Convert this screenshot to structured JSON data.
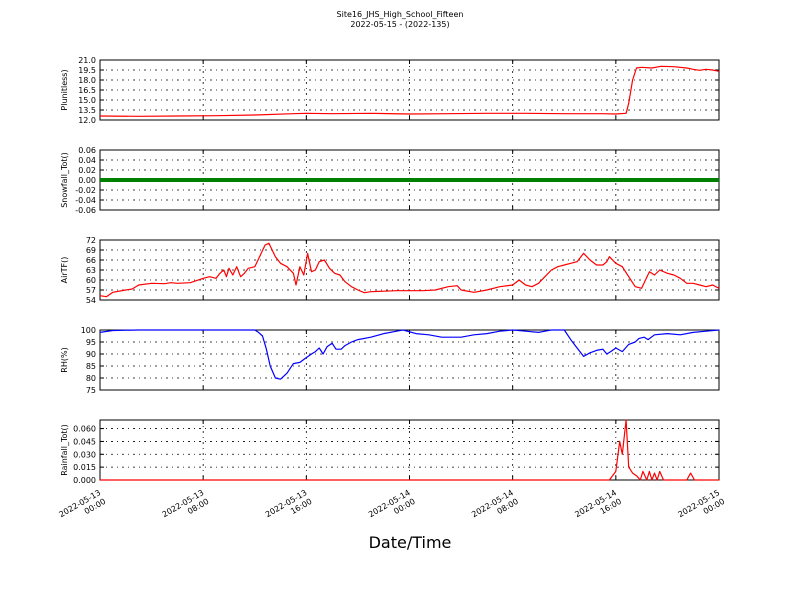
{
  "figure": {
    "title": "Site16_JHS_High_School_Fifteen",
    "subtitle": "2022-05-15 - (2022-135)",
    "xlabel": "Date/Time"
  },
  "chart_data": {
    "type": "line",
    "x_ticks": [
      {
        "hours": 0,
        "line1": "2022-05-13",
        "line2": "00:00"
      },
      {
        "hours": 8,
        "line1": "2022-05-13",
        "line2": "08:00"
      },
      {
        "hours": 16,
        "line1": "2022-05-13",
        "line2": "16:00"
      },
      {
        "hours": 24,
        "line1": "2022-05-14",
        "line2": "00:00"
      },
      {
        "hours": 32,
        "line1": "2022-05-14",
        "line2": "08:00"
      },
      {
        "hours": 40,
        "line1": "2022-05-14",
        "line2": "16:00"
      },
      {
        "hours": 48,
        "line1": "2022-05-15",
        "line2": "00:00"
      }
    ],
    "panels": [
      {
        "ylabel": "Plunitless)",
        "color": "#ff0000",
        "style": "line",
        "ylim": [
          12.0,
          21.0
        ],
        "yticks": [
          "12.0",
          "13.5",
          "15.0",
          "16.5",
          "18.0",
          "19.5",
          "21.0"
        ],
        "points": [
          [
            0,
            12.6
          ],
          [
            3,
            12.55
          ],
          [
            6,
            12.6
          ],
          [
            9,
            12.65
          ],
          [
            12,
            12.75
          ],
          [
            15,
            12.95
          ],
          [
            16,
            13.0
          ],
          [
            18,
            12.95
          ],
          [
            21,
            13.0
          ],
          [
            24,
            12.9
          ],
          [
            27,
            12.95
          ],
          [
            30,
            13.0
          ],
          [
            33,
            13.0
          ],
          [
            36,
            12.95
          ],
          [
            39,
            12.95
          ],
          [
            40,
            12.9
          ],
          [
            40.8,
            13.0
          ],
          [
            41.0,
            14.5
          ],
          [
            41.3,
            18.0
          ],
          [
            41.6,
            19.8
          ],
          [
            42,
            19.9
          ],
          [
            42.8,
            19.8
          ],
          [
            43.5,
            20.05
          ],
          [
            44.5,
            20.0
          ],
          [
            45.5,
            19.8
          ],
          [
            46,
            19.6
          ],
          [
            46.5,
            19.45
          ],
          [
            47,
            19.6
          ],
          [
            47.5,
            19.5
          ],
          [
            48,
            19.3
          ]
        ]
      },
      {
        "ylabel": "Snowfall_Tot()",
        "color": "#008000",
        "style": "dots",
        "ylim": [
          -0.06,
          0.06
        ],
        "yticks": [
          "-0.06",
          "-0.04",
          "-0.02",
          "0.00",
          "0.02",
          "0.04",
          "0.06"
        ],
        "points": [
          [
            0,
            0
          ],
          [
            48,
            0
          ]
        ]
      },
      {
        "ylabel": "AirTF()",
        "color": "#ff0000",
        "style": "line",
        "ylim": [
          54,
          72
        ],
        "yticks": [
          "54",
          "57",
          "60",
          "63",
          "66",
          "69",
          "72"
        ],
        "points": [
          [
            0,
            55.3
          ],
          [
            0.5,
            55.0
          ],
          [
            1,
            56.3
          ],
          [
            2,
            57.0
          ],
          [
            2.5,
            57.3
          ],
          [
            3,
            58.5
          ],
          [
            4,
            59.0
          ],
          [
            5,
            58.9
          ],
          [
            5.5,
            59.2
          ],
          [
            6,
            59.0
          ],
          [
            7,
            59.2
          ],
          [
            8,
            60.5
          ],
          [
            8.5,
            61.0
          ],
          [
            9,
            60.5
          ],
          [
            9.3,
            62.0
          ],
          [
            9.6,
            63.0
          ],
          [
            9.8,
            61.0
          ],
          [
            10,
            63.5
          ],
          [
            10.3,
            61.5
          ],
          [
            10.6,
            64.0
          ],
          [
            10.9,
            61.0
          ],
          [
            11.2,
            62.0
          ],
          [
            11.5,
            63.5
          ],
          [
            12,
            64.0
          ],
          [
            12.5,
            68.0
          ],
          [
            12.8,
            70.5
          ],
          [
            13.1,
            71.0
          ],
          [
            13.6,
            67.0
          ],
          [
            14,
            65.0
          ],
          [
            14.5,
            64.0
          ],
          [
            15,
            62.0
          ],
          [
            15.2,
            58.5
          ],
          [
            15.5,
            64.0
          ],
          [
            15.8,
            61.5
          ],
          [
            16.1,
            68.0
          ],
          [
            16.4,
            62.5
          ],
          [
            16.7,
            63.0
          ],
          [
            17,
            65.5
          ],
          [
            17.4,
            66.0
          ],
          [
            17.8,
            63.5
          ],
          [
            18.2,
            62.0
          ],
          [
            18.6,
            61.5
          ],
          [
            19,
            59.5
          ],
          [
            19.5,
            58.0
          ],
          [
            20,
            57.0
          ],
          [
            20.5,
            56.2
          ],
          [
            21,
            56.5
          ],
          [
            23,
            56.8
          ],
          [
            24,
            56.8
          ],
          [
            25,
            56.8
          ],
          [
            26,
            57.0
          ],
          [
            27,
            58.0
          ],
          [
            27.7,
            58.3
          ],
          [
            28,
            57.0
          ],
          [
            29,
            56.3
          ],
          [
            30,
            57.0
          ],
          [
            31,
            58.0
          ],
          [
            32,
            58.5
          ],
          [
            32.5,
            60.0
          ],
          [
            33,
            58.5
          ],
          [
            33.5,
            58.0
          ],
          [
            34,
            59.0
          ],
          [
            34.5,
            61.0
          ],
          [
            35,
            63.0
          ],
          [
            35.5,
            64.0
          ],
          [
            36,
            64.5
          ],
          [
            36.5,
            65.0
          ],
          [
            37,
            65.5
          ],
          [
            37.5,
            68.0
          ],
          [
            38,
            66.0
          ],
          [
            38.5,
            64.5
          ],
          [
            39,
            64.5
          ],
          [
            39.3,
            65.5
          ],
          [
            39.5,
            67.0
          ],
          [
            40,
            65.0
          ],
          [
            40.5,
            64.0
          ],
          [
            41,
            61.0
          ],
          [
            41.5,
            58.0
          ],
          [
            42,
            57.5
          ],
          [
            42.3,
            60.0
          ],
          [
            42.6,
            62.5
          ],
          [
            43,
            61.5
          ],
          [
            43.4,
            63.0
          ],
          [
            44,
            62.0
          ],
          [
            44.5,
            61.5
          ],
          [
            45,
            60.5
          ],
          [
            45.5,
            59.0
          ],
          [
            46,
            59.0
          ],
          [
            46.5,
            58.5
          ],
          [
            47,
            58.0
          ],
          [
            47.5,
            58.5
          ],
          [
            48,
            57.5
          ]
        ]
      },
      {
        "ylabel": "RH(%)",
        "color": "#0000ff",
        "style": "line",
        "ylim": [
          75,
          100
        ],
        "yticks": [
          "75",
          "80",
          "85",
          "90",
          "95",
          "100"
        ],
        "points": [
          [
            0,
            99.0
          ],
          [
            1,
            99.8
          ],
          [
            3,
            100
          ],
          [
            6,
            100
          ],
          [
            8,
            100
          ],
          [
            10,
            100
          ],
          [
            11,
            100
          ],
          [
            12,
            100
          ],
          [
            12.3,
            99.0
          ],
          [
            12.6,
            97.5
          ],
          [
            12.9,
            92.0
          ],
          [
            13.2,
            85.0
          ],
          [
            13.6,
            80.0
          ],
          [
            14,
            79.5
          ],
          [
            14.5,
            82.0
          ],
          [
            15,
            86.0
          ],
          [
            15.5,
            86.5
          ],
          [
            16,
            88.5
          ],
          [
            16.4,
            90.0
          ],
          [
            16.7,
            91.0
          ],
          [
            17,
            92.5
          ],
          [
            17.3,
            90.0
          ],
          [
            17.6,
            93.0
          ],
          [
            18,
            94.5
          ],
          [
            18.3,
            92.0
          ],
          [
            18.7,
            92.0
          ],
          [
            19,
            93.5
          ],
          [
            19.5,
            95.0
          ],
          [
            20,
            96.0
          ],
          [
            21,
            97.0
          ],
          [
            22,
            98.5
          ],
          [
            23,
            99.5
          ],
          [
            23.5,
            100
          ],
          [
            24.5,
            98.5
          ],
          [
            25.5,
            98.0
          ],
          [
            26.5,
            97.0
          ],
          [
            28,
            97.0
          ],
          [
            29,
            98.0
          ],
          [
            30,
            98.5
          ],
          [
            31,
            99.5
          ],
          [
            32,
            100
          ],
          [
            33,
            99.5
          ],
          [
            34,
            99.0
          ],
          [
            34.5,
            99.5
          ],
          [
            35,
            100
          ],
          [
            36,
            100
          ],
          [
            36.5,
            96.0
          ],
          [
            37,
            92.5
          ],
          [
            37.5,
            89.0
          ],
          [
            38,
            90.5
          ],
          [
            38.5,
            91.5
          ],
          [
            39,
            92.0
          ],
          [
            39.3,
            90.0
          ],
          [
            39.6,
            91.0
          ],
          [
            40,
            92.5
          ],
          [
            40.5,
            91.0
          ],
          [
            41,
            94.0
          ],
          [
            41.5,
            95.0
          ],
          [
            41.8,
            96.5
          ],
          [
            42.2,
            97.0
          ],
          [
            42.5,
            96.0
          ],
          [
            43,
            98.0
          ],
          [
            44,
            98.5
          ],
          [
            45,
            98.0
          ],
          [
            46,
            99.0
          ],
          [
            47,
            99.5
          ],
          [
            48,
            100
          ]
        ]
      },
      {
        "ylabel": "Rainfall_Tot()",
        "color": "#ff0000",
        "style": "line",
        "ylim": [
          0,
          0.07
        ],
        "yticks": [
          "0.000",
          "0.015",
          "0.030",
          "0.045",
          "0.060"
        ],
        "points": [
          [
            0,
            0
          ],
          [
            39.5,
            0
          ],
          [
            40,
            0.01
          ],
          [
            40.3,
            0.045
          ],
          [
            40.5,
            0.03
          ],
          [
            40.8,
            0.07
          ],
          [
            41,
            0.015
          ],
          [
            41.3,
            0.008
          ],
          [
            41.6,
            0.005
          ],
          [
            41.9,
            0
          ],
          [
            42.1,
            0.01
          ],
          [
            42.4,
            0
          ],
          [
            42.6,
            0.01
          ],
          [
            42.8,
            0
          ],
          [
            43.0,
            0.008
          ],
          [
            43.2,
            0
          ],
          [
            43.4,
            0.01
          ],
          [
            43.7,
            0
          ],
          [
            45.5,
            0
          ],
          [
            45.8,
            0.008
          ],
          [
            46.1,
            0
          ],
          [
            48,
            0
          ]
        ]
      }
    ]
  }
}
